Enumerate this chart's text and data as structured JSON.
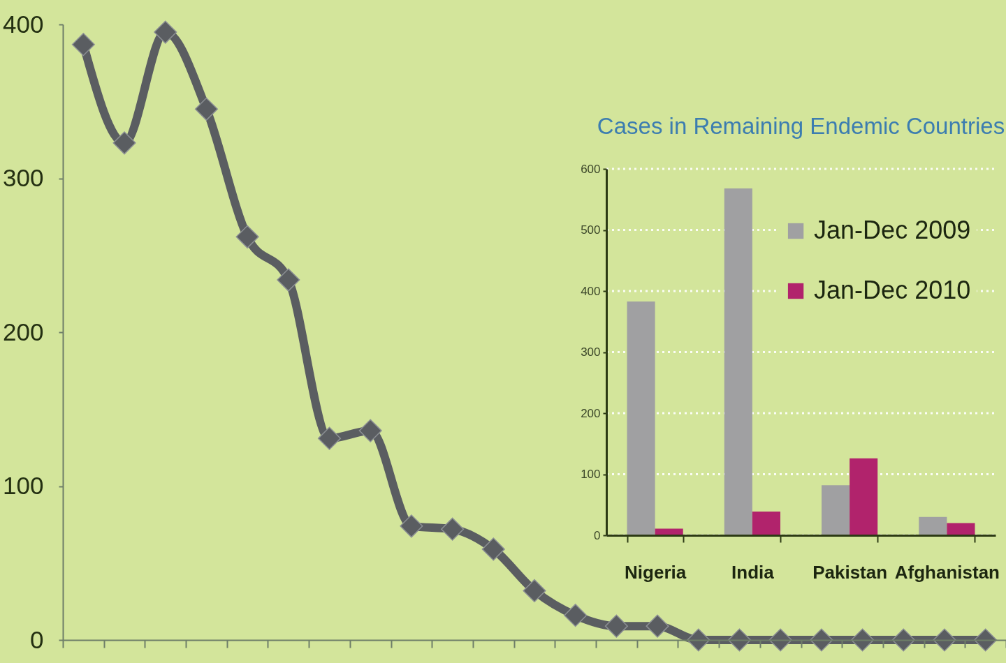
{
  "chart_data": [
    {
      "type": "line",
      "categories": [
        null,
        null,
        null,
        null,
        null,
        null,
        null,
        null,
        null,
        null,
        null,
        null,
        null,
        null,
        null,
        null,
        null,
        null,
        null,
        null,
        null,
        null,
        null
      ],
      "values": [
        387,
        323,
        395,
        345,
        262,
        234,
        131,
        136,
        74,
        72,
        59,
        32,
        16,
        9,
        9,
        0,
        0,
        0,
        0,
        0,
        0,
        0,
        0
      ],
      "color": "#5a5d61",
      "marker": "diamond",
      "line_style": "solid",
      "ylim": [
        0,
        400
      ],
      "yticks": [
        0,
        100,
        200,
        300,
        400
      ],
      "tick_labels": "y"
    },
    {
      "type": "bar",
      "title": "Cases in Remaining Endemic Countries",
      "categories": [
        "Nigeria",
        "India",
        "Pakistan",
        "Afghanistan"
      ],
      "series": [
        {
          "name": "Jan-Dec 2009",
          "color": "#a0a0a2",
          "values": [
            383,
            568,
            82,
            30
          ]
        },
        {
          "name": "Jan-Dec 2010",
          "color": "#b1236c",
          "values": [
            11,
            39,
            126,
            20
          ]
        }
      ],
      "ylim": [
        0,
        600
      ],
      "yticks": [
        0,
        100,
        200,
        300,
        400,
        500,
        600
      ],
      "grid": "y",
      "legend": "top right"
    }
  ]
}
